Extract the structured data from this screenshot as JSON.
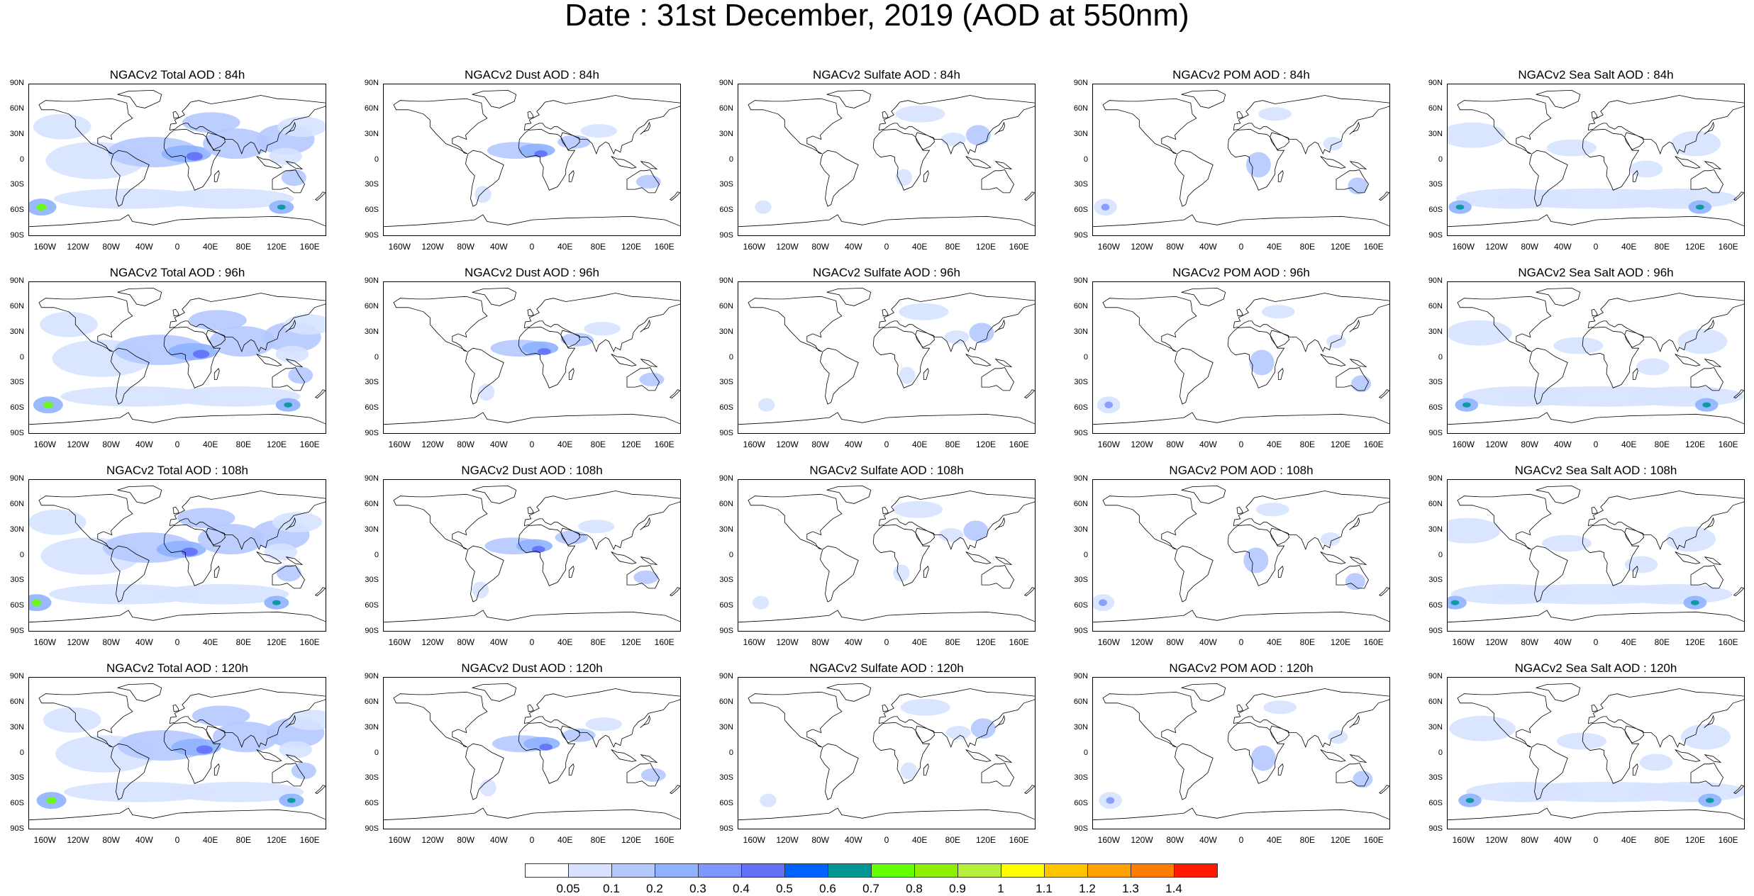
{
  "title": "Date : 31st December, 2019 (AOD at 550nm)",
  "lat_ticks": [
    "90N",
    "60N",
    "30N",
    "0",
    "30S",
    "60S",
    "90S"
  ],
  "lon_ticks": [
    "160W",
    "120W",
    "80W",
    "40W",
    "0",
    "40E",
    "80E",
    "120E",
    "160E"
  ],
  "panels": [
    [
      "NGACv2 Total AOD : 84h",
      "NGACv2 Dust AOD : 84h",
      "NGACv2 Sulfate AOD : 84h",
      "NGACv2 POM AOD : 84h",
      "NGACv2 Sea Salt AOD : 84h"
    ],
    [
      "NGACv2 Total AOD : 96h",
      "NGACv2 Dust AOD : 96h",
      "NGACv2 Sulfate AOD : 96h",
      "NGACv2 POM AOD : 96h",
      "NGACv2 Sea Salt AOD : 96h"
    ],
    [
      "NGACv2 Total AOD : 108h",
      "NGACv2 Dust AOD : 108h",
      "NGACv2 Sulfate AOD : 108h",
      "NGACv2 POM AOD : 108h",
      "NGACv2 Sea Salt AOD : 108h"
    ],
    [
      "NGACv2 Total AOD : 120h",
      "NGACv2 Dust AOD : 120h",
      "NGACv2 Sulfate AOD : 120h",
      "NGACv2 POM AOD : 120h",
      "NGACv2 Sea Salt  AOD : 120h"
    ]
  ],
  "panel_types": [
    "total",
    "dust",
    "sulfate",
    "pom",
    "seasalt"
  ],
  "colorbar": {
    "labels": [
      "0.05",
      "0.1",
      "0.2",
      "0.3",
      "0.4",
      "0.5",
      "0.6",
      "0.7",
      "0.8",
      "0.9",
      "1",
      "1.1",
      "1.2",
      "1.3",
      "1.4"
    ],
    "colors": [
      "#ffffff",
      "#d6e2ff",
      "#b5c9ff",
      "#8eb2ff",
      "#7f96ff",
      "#6370f8",
      "#0063ff",
      "#009696",
      "#66ff00",
      "#8ef000",
      "#b6f03c",
      "#ffff00",
      "#ffc400",
      "#ffa100",
      "#ff7d00",
      "#ff1900"
    ]
  }
}
